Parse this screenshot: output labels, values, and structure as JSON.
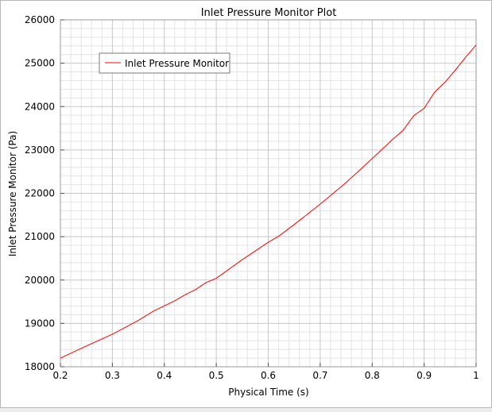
{
  "chart_data": {
    "type": "line",
    "title": "Inlet Pressure Monitor Plot",
    "xlabel": "Physical Time (s)",
    "ylabel": "Inlet Pressure Monitor (Pa)",
    "xlim": [
      0.2,
      1.0
    ],
    "ylim": [
      18000,
      26000
    ],
    "x_ticks": [
      0.2,
      0.3,
      0.4,
      0.5,
      0.6,
      0.7,
      0.8,
      0.9,
      1.0
    ],
    "x_tick_labels": [
      "0.2",
      "0.3",
      "0.4",
      "0.5",
      "0.6",
      "0.7",
      "0.8",
      "0.9",
      "1"
    ],
    "y_ticks": [
      18000,
      19000,
      20000,
      21000,
      22000,
      23000,
      24000,
      25000,
      26000
    ],
    "y_tick_labels": [
      "18000",
      "19000",
      "20000",
      "21000",
      "22000",
      "23000",
      "24000",
      "25000",
      "26000"
    ],
    "grid": true,
    "legend_position": "top-left",
    "series": [
      {
        "name": "Inlet Pressure Monitor",
        "color": "#ff0000",
        "x": [
          0.2,
          0.25,
          0.3,
          0.35,
          0.38,
          0.42,
          0.44,
          0.46,
          0.48,
          0.5,
          0.55,
          0.6,
          0.62,
          0.65,
          0.7,
          0.75,
          0.8,
          0.84,
          0.86,
          0.88,
          0.9,
          0.92,
          0.94,
          0.96,
          0.98,
          1.0
        ],
        "y": [
          18200,
          18480,
          18750,
          19070,
          19290,
          19520,
          19660,
          19780,
          19940,
          20040,
          20470,
          20870,
          21010,
          21280,
          21750,
          22250,
          22800,
          23250,
          23460,
          23790,
          23960,
          24330,
          24560,
          24840,
          25140,
          25420
        ]
      }
    ]
  }
}
